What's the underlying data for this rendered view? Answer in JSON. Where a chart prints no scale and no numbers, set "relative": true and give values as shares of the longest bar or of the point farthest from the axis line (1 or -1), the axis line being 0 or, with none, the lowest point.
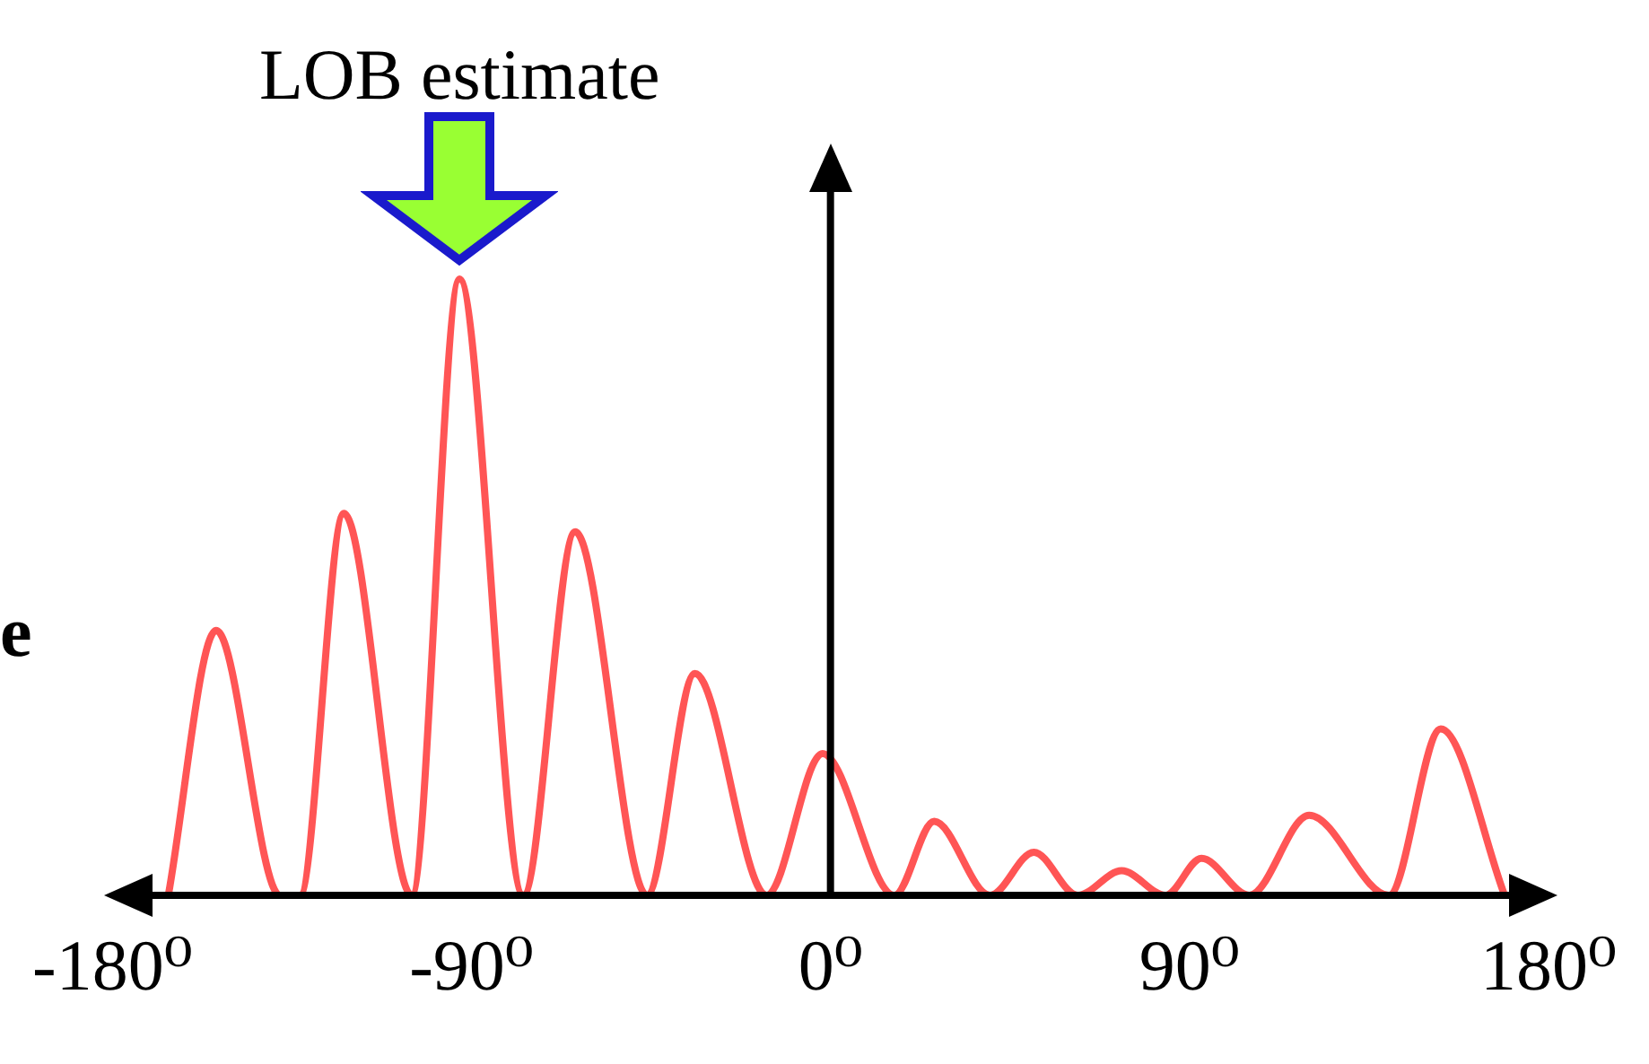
{
  "chart_data": {
    "type": "line",
    "relative": true,
    "ylabel": "e",
    "xlim": [
      -180,
      180
    ],
    "xticks": [
      {
        "value": -180,
        "label": "-180⁰"
      },
      {
        "value": -90,
        "label": "-90⁰"
      },
      {
        "value": 0,
        "label": "0⁰"
      },
      {
        "value": 90,
        "label": "90⁰"
      },
      {
        "value": 180,
        "label": "180⁰"
      }
    ],
    "x": [
      -166,
      -154,
      -138,
      -133,
      -122,
      -105,
      -93,
      -77,
      -64,
      -46,
      -34,
      -16,
      -2,
      16,
      26,
      40,
      51,
      62,
      73,
      84,
      93,
      105,
      120,
      140,
      153,
      169
    ],
    "series": [
      {
        "color": "#ff5555",
        "values": [
          0,
          0.43,
          0,
          0,
          0.62,
          0,
          1,
          0,
          0.59,
          0,
          0.36,
          0,
          0.23,
          0,
          0.12,
          0,
          0.07,
          0,
          0.04,
          0,
          0.06,
          0,
          0.13,
          0,
          0.27,
          0
        ]
      }
    ],
    "annotations": [
      {
        "text": "LOB estimate",
        "x": -93,
        "y": 1
      }
    ],
    "ref_lines": [
      {
        "axis": "x",
        "value": 0,
        "color": "#000000"
      }
    ],
    "marker": "none",
    "grid": false,
    "legend": false
  }
}
